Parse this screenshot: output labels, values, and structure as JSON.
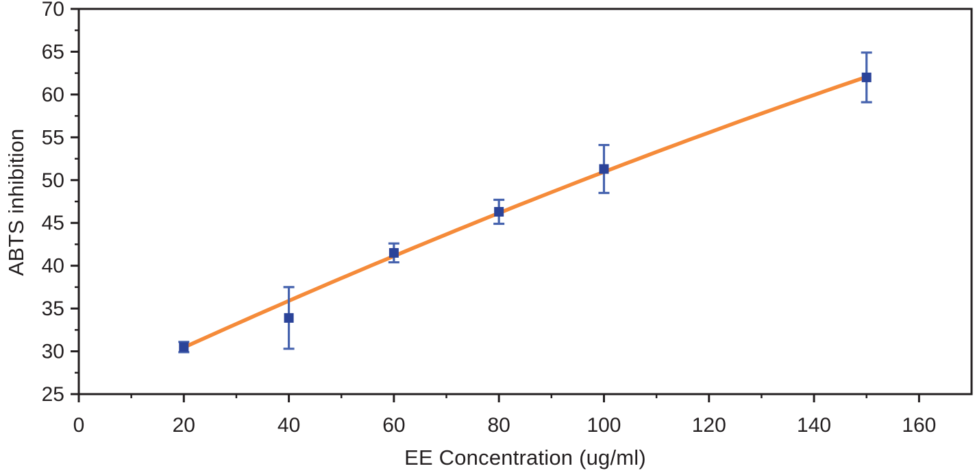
{
  "figure": {
    "background": "#ffffff"
  },
  "chart_data": {
    "type": "scatter",
    "subtype": "scatter-with-errorbars-and-trendline",
    "x": [
      20,
      40,
      60,
      80,
      100,
      150
    ],
    "y": [
      30.5,
      33.9,
      41.5,
      46.3,
      51.3,
      62.0
    ],
    "y_err": [
      0.6,
      3.6,
      1.1,
      1.4,
      2.8,
      2.9
    ],
    "title": "",
    "xlabel": "EE Concentration (ug/ml)",
    "ylabel": "ABTS inhibition",
    "xlim": [
      0,
      170
    ],
    "ylim": [
      25,
      70
    ],
    "x_major_ticks": [
      0,
      20,
      40,
      60,
      80,
      100,
      120,
      140,
      160
    ],
    "x_minor_ticks": [
      10,
      30,
      50,
      70,
      90,
      110,
      130,
      150
    ],
    "y_major_ticks": [
      25,
      30,
      35,
      40,
      45,
      50,
      55,
      60,
      65,
      70
    ],
    "y_minor_ticks": [
      27.5,
      32.5,
      37.5,
      42.5,
      47.5,
      52.5,
      57.5,
      62.5,
      67.5
    ],
    "grid": false,
    "legend": null,
    "box_border": true,
    "tick_direction": "out",
    "colors": {
      "axis": "#231f20",
      "tick_label": "#231f20",
      "marker": "#2b4399",
      "error_bar": "#4663ae",
      "trend_line": "#f58b3a"
    },
    "marker": {
      "shape": "square",
      "size": 14
    },
    "error_bar": {
      "cap_width": 16,
      "line_width": 3.2
    },
    "trend": {
      "type": "quadratic",
      "a": 24.8,
      "b": 0.288,
      "c": -0.000264,
      "x_start": 20,
      "x_end": 150,
      "line_width": 5.5
    }
  }
}
